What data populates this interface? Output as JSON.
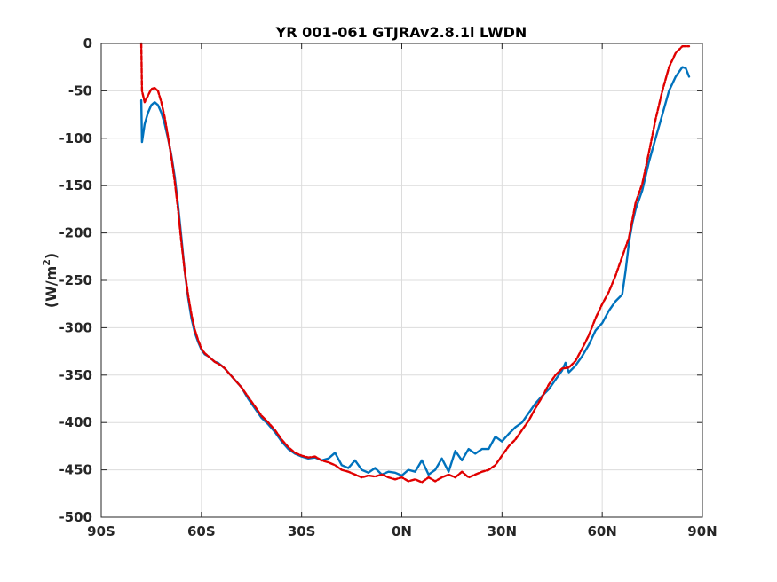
{
  "chart_data": {
    "type": "line",
    "title": "YR 001-061 GTJRAv2.8.1l LWDN",
    "xlabel": "",
    "ylabel": "(W/m",
    "ylabel_sup": "2",
    "ylabel_end": ")",
    "xlim": [
      -90,
      90
    ],
    "ylim": [
      -500,
      0
    ],
    "xticks": [
      -90,
      -60,
      -30,
      0,
      30,
      60,
      90
    ],
    "xtick_labels": [
      "90S",
      "60S",
      "30S",
      "0N",
      "30N",
      "60N",
      "90N"
    ],
    "yticks": [
      0,
      -50,
      -100,
      -150,
      -200,
      -250,
      -300,
      -350,
      -400,
      -450,
      -500
    ],
    "ytick_labels": [
      "0",
      "-50",
      "-100",
      "-150",
      "-200",
      "-250",
      "-300",
      "-350",
      "-400",
      "-450",
      "-500"
    ],
    "grid": true,
    "series": [
      {
        "color": "#0072bd",
        "style": "solid",
        "x": [
          -78,
          -77.8,
          -77,
          -76,
          -75,
          -74,
          -73,
          -72,
          -71,
          -70,
          -69,
          -68,
          -67,
          -66,
          -65,
          -64,
          -63,
          -62,
          -61,
          -60,
          -59,
          -58,
          -57,
          -56,
          -55,
          -54,
          -53,
          -52,
          -50,
          -48,
          -46,
          -44,
          -42,
          -40,
          -38,
          -36,
          -34,
          -32,
          -30,
          -28,
          -26,
          -24,
          -22,
          -20,
          -18,
          -16,
          -14,
          -12,
          -10,
          -8,
          -6,
          -4,
          -2,
          0,
          2,
          4,
          6,
          8,
          10,
          12,
          14,
          16,
          18,
          20,
          22,
          24,
          26,
          28,
          30,
          32,
          34,
          36,
          38,
          40,
          42,
          44,
          46,
          48,
          49,
          50,
          52,
          54,
          56,
          58,
          60,
          62,
          64,
          66,
          67,
          68,
          69,
          70,
          72,
          74,
          76,
          78,
          80,
          82,
          84,
          85,
          86
        ],
        "y": [
          -60,
          -104,
          -85,
          -73,
          -65,
          -62,
          -65,
          -73,
          -85,
          -100,
          -118,
          -140,
          -170,
          -205,
          -240,
          -268,
          -290,
          -305,
          -315,
          -323,
          -328,
          -330,
          -333,
          -336,
          -337,
          -340,
          -343,
          -347,
          -355,
          -363,
          -375,
          -385,
          -395,
          -402,
          -410,
          -420,
          -428,
          -433,
          -436,
          -438,
          -437,
          -440,
          -438,
          -432,
          -445,
          -448,
          -440,
          -450,
          -453,
          -448,
          -455,
          -452,
          -453,
          -456,
          -450,
          -452,
          -440,
          -455,
          -450,
          -438,
          -452,
          -430,
          -440,
          -428,
          -433,
          -428,
          -428,
          -415,
          -420,
          -412,
          -405,
          -400,
          -390,
          -380,
          -372,
          -365,
          -355,
          -345,
          -337,
          -347,
          -340,
          -330,
          -318,
          -303,
          -295,
          -282,
          -272,
          -265,
          -240,
          -210,
          -190,
          -175,
          -155,
          -125,
          -100,
          -75,
          -50,
          -35,
          -25,
          -26,
          -35
        ]
      },
      {
        "color": "#e00000",
        "style": "dashed",
        "x": [
          -78,
          -77.8,
          -77,
          -76,
          -75,
          -74,
          -73,
          -72,
          -71,
          -70,
          -69,
          -68,
          -67,
          -66,
          -65,
          -64,
          -63,
          -62,
          -61,
          -60,
          -59,
          -58,
          -57,
          -56,
          -55,
          -54,
          -53,
          -52,
          -50,
          -48,
          -46,
          -44,
          -42,
          -40,
          -38,
          -36,
          -34,
          -32,
          -30,
          -28,
          -26,
          -24,
          -22,
          -20,
          -18,
          -16,
          -14,
          -12,
          -10,
          -8,
          -6,
          -4,
          -2,
          0,
          2,
          4,
          6,
          8,
          10,
          12,
          14,
          16,
          18,
          20,
          22,
          24,
          26,
          28,
          30,
          32,
          34,
          36,
          38,
          40,
          42,
          44,
          46,
          48,
          50,
          52,
          54,
          56,
          58,
          60,
          62,
          64,
          66,
          68,
          70,
          72,
          74,
          76,
          78,
          80,
          82,
          84,
          86
        ],
        "y": [
          0,
          -50,
          -62,
          -55,
          -48,
          -47,
          -50,
          -62,
          -78,
          -98,
          -120,
          -145,
          -175,
          -210,
          -240,
          -265,
          -286,
          -302,
          -313,
          -322,
          -327,
          -330,
          -333,
          -336,
          -338,
          -340,
          -343,
          -347,
          -355,
          -363,
          -373,
          -383,
          -393,
          -400,
          -408,
          -418,
          -426,
          -432,
          -435,
          -437,
          -436,
          -440,
          -442,
          -445,
          -450,
          -452,
          -455,
          -458,
          -456,
          -457,
          -455,
          -458,
          -460,
          -458,
          -462,
          -460,
          -463,
          -458,
          -462,
          -458,
          -455,
          -458,
          -452,
          -458,
          -455,
          -452,
          -450,
          -445,
          -435,
          -425,
          -418,
          -408,
          -398,
          -385,
          -373,
          -360,
          -350,
          -343,
          -342,
          -335,
          -322,
          -308,
          -290,
          -275,
          -262,
          -245,
          -225,
          -205,
          -168,
          -148,
          -115,
          -80,
          -50,
          -25,
          -10,
          -3,
          -3
        ]
      }
    ]
  }
}
